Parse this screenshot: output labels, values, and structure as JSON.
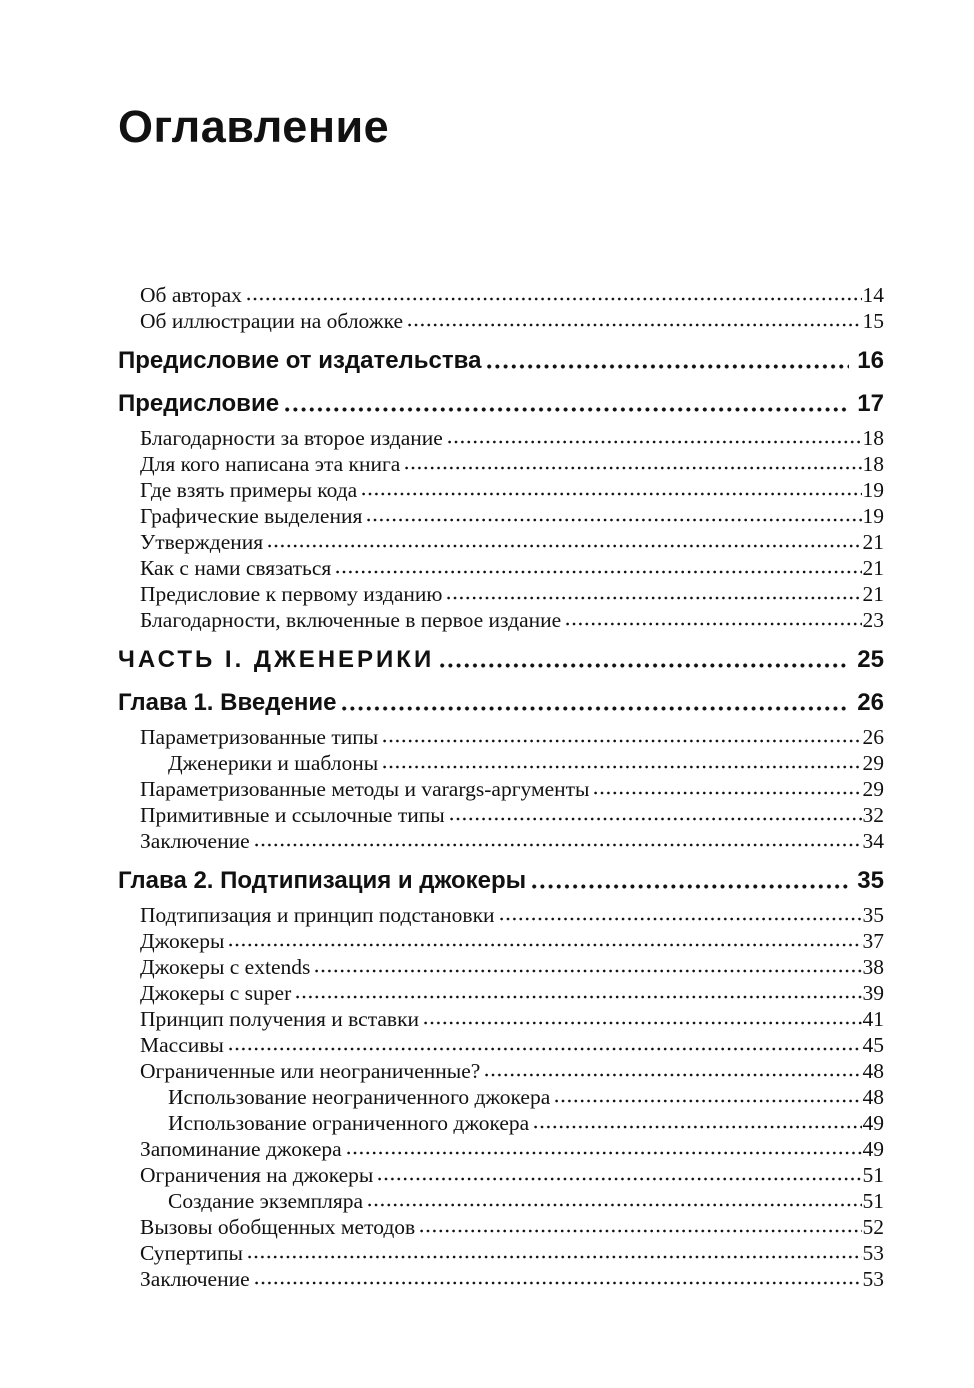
{
  "page": {
    "title": "Оглавление"
  },
  "toc": {
    "entries": [
      {
        "label": "Об авторах",
        "page": "14",
        "style": "plain",
        "level": 1
      },
      {
        "label": "Об иллюстрации на обложке",
        "page": "15",
        "style": "plain",
        "level": 1
      },
      {
        "label": "Предисловие от издательства",
        "page": "16",
        "style": "heading",
        "level": 1
      },
      {
        "label": "Предисловие",
        "page": "17",
        "style": "heading",
        "level": 1
      },
      {
        "label": "Благодарности за второе издание",
        "page": "18",
        "style": "plain",
        "level": 1
      },
      {
        "label": "Для кого написана эта книга",
        "page": "18",
        "style": "plain",
        "level": 1
      },
      {
        "label": "Где взять примеры кода",
        "page": "19",
        "style": "plain",
        "level": 1
      },
      {
        "label": "Графические выделения",
        "page": "19",
        "style": "plain",
        "level": 1
      },
      {
        "label": "Утверждения",
        "page": "21",
        "style": "plain",
        "level": 1
      },
      {
        "label": "Как с нами связаться",
        "page": "21",
        "style": "plain",
        "level": 1
      },
      {
        "label": "Предисловие к первому изданию",
        "page": "21",
        "style": "plain",
        "level": 1
      },
      {
        "label": "Благодарности, включенные в первое издание",
        "page": "23",
        "style": "plain",
        "level": 1
      },
      {
        "label": "ЧАСТЬ I. ДЖЕНЕРИКИ",
        "page": "25",
        "style": "part",
        "level": 1
      },
      {
        "label": "Глава 1. Введение",
        "page": "26",
        "style": "heading",
        "level": 1
      },
      {
        "label": "Параметризованные типы",
        "page": "26",
        "style": "plain",
        "level": 1
      },
      {
        "label": "Дженерики и шаблоны",
        "page": "29",
        "style": "plain",
        "level": 2
      },
      {
        "label": "Параметризованные методы и varargs-аргументы",
        "page": "29",
        "style": "plain",
        "level": 1
      },
      {
        "label": "Примитивные и ссылочные типы",
        "page": "32",
        "style": "plain",
        "level": 1
      },
      {
        "label": "Заключение",
        "page": "34",
        "style": "plain",
        "level": 1
      },
      {
        "label": "Глава 2. Подтипизация и джокеры",
        "page": "35",
        "style": "heading",
        "level": 1
      },
      {
        "label": "Подтипизация и принцип подстановки",
        "page": "35",
        "style": "plain",
        "level": 1
      },
      {
        "label": "Джокеры",
        "page": "37",
        "style": "plain",
        "level": 1
      },
      {
        "label": "Джокеры с extends",
        "page": "38",
        "style": "plain",
        "level": 1
      },
      {
        "label": "Джокеры с super",
        "page": "39",
        "style": "plain",
        "level": 1
      },
      {
        "label": "Принцип получения и вставки",
        "page": "41",
        "style": "plain",
        "level": 1
      },
      {
        "label": "Массивы",
        "page": "45",
        "style": "plain",
        "level": 1
      },
      {
        "label": "Ограниченные или неограниченные?",
        "page": "48",
        "style": "plain",
        "level": 1
      },
      {
        "label": "Использование неограниченного джокера",
        "page": "48",
        "style": "plain",
        "level": 2
      },
      {
        "label": "Использование ограниченного джокера",
        "page": "49",
        "style": "plain",
        "level": 2
      },
      {
        "label": "Запоминание джокера",
        "page": "49",
        "style": "plain",
        "level": 1
      },
      {
        "label": "Ограничения на джокеры",
        "page": "51",
        "style": "plain",
        "level": 1
      },
      {
        "label": "Создание экземпляра",
        "page": "51",
        "style": "plain",
        "level": 2
      },
      {
        "label": "Вызовы обобщенных методов",
        "page": "52",
        "style": "plain",
        "level": 1
      },
      {
        "label": "Супертипы",
        "page": "53",
        "style": "plain",
        "level": 1
      },
      {
        "label": "Заключение",
        "page": "53",
        "style": "plain",
        "level": 1
      }
    ]
  }
}
